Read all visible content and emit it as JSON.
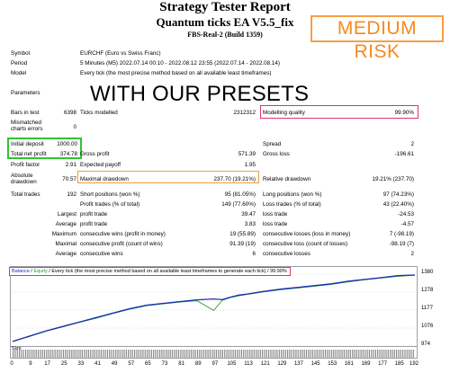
{
  "header": {
    "title": "Strategy Tester Report",
    "subtitle": "Quantum ticks EA V5.5_fix",
    "server": "FBS-Real-2 (Build 1359)",
    "risk_badge": "MEDIUM RISK",
    "overlay_text": "WITH OUR PRESETS"
  },
  "info": {
    "symbol_label": "Symbol",
    "symbol_value": "EURCHF (Euro vs Swiss Franc)",
    "period_label": "Period",
    "period_value": "5 Minutes (M5) 2022.07.14 00:10 - 2022.08.12 23:55 (2022.07.14 - 2022.08.14)",
    "model_label": "Model",
    "model_value": "Every tick (the most precise method based on all available least timeframes)",
    "parameters_label": "Parameters"
  },
  "stats": {
    "bars_label": "Bars in test",
    "bars_value": "6398",
    "ticks_label": "Ticks modelled",
    "ticks_value": "2312312",
    "quality_label": "Modelling quality",
    "quality_value": "99.90%",
    "mismatched_label_1": "Mismatched",
    "mismatched_label_2": "charts errors",
    "mismatched_value": "0",
    "deposit_label": "Initial deposit",
    "deposit_value": "1000.00",
    "spread_label": "Spread",
    "spread_value": "2",
    "net_label": "Total net profit",
    "net_value": "374.78",
    "gross_profit_label": "Gross profit",
    "gross_profit_value": "571.39",
    "gross_loss_label": "Gross loss",
    "gross_loss_value": "-196.61",
    "pf_label": "Profit factor",
    "pf_value": "2.91",
    "payoff_label": "Expected payoff",
    "payoff_value": "1.95",
    "abs_dd_label_1": "Absolute",
    "abs_dd_label_2": "drawdown",
    "abs_dd_value": "70.57",
    "max_dd_label": "Maximal drawdown",
    "max_dd_value": "237.70 (19.21%)",
    "rel_dd_label": "Relative drawdown",
    "rel_dd_value": "19.21% (237.70)",
    "trades_label": "Total trades",
    "trades_value": "192",
    "short_label": "Short positions (won %)",
    "short_value": "95 (81.05%)",
    "long_label": "Long positions (won %)",
    "long_value": "97 (74.23%)",
    "pt_label": "Profit trades (% of total)",
    "pt_value": "149 (77.60%)",
    "lt_label": "Loss trades (% of total)",
    "lt_value": "43 (22.40%)",
    "largest_label": "Largest",
    "largest_pt_label": "profit trade",
    "largest_pt_value": "39.47",
    "largest_lt_label": "loss trade",
    "largest_lt_value": "-24.53",
    "average_label": "Average",
    "avg_pt_label": "profit trade",
    "avg_pt_value": "3.83",
    "avg_lt_label": "loss trade",
    "avg_lt_value": "-4.57",
    "maximum_label": "Maximum",
    "max_cw_label": "consecutive wins (profit in money)",
    "max_cw_value": "19 (55.89)",
    "max_cl_label": "consecutive losses (loss in money)",
    "max_cl_value": "7 (-98.19)",
    "maximal_label": "Maximal",
    "maxl_cp_label": "consecutive profit (count of wins)",
    "maxl_cp_value": "91.39 (19)",
    "maxl_cl_label": "consecutive loss (count of losses)",
    "maxl_cl_value": "-98.19 (7)",
    "avg2_label": "Average",
    "avg_cw_label": "consecutive wins",
    "avg_cw_value": "6",
    "avg_cl_label": "consecutive losses",
    "avg_cl_value": "2"
  },
  "chart": {
    "legend_balance": "Balance",
    "legend_sep": " / ",
    "legend_equity": "Equity",
    "legend_rest": " / Every tick (the most precise method based on all available least timeframes to generate each tick) / 99.90%",
    "size_label": "Size",
    "yticks": [
      "1380",
      "1278",
      "1177",
      "1076",
      "974"
    ],
    "xticks": [
      "0",
      "9",
      "17",
      "25",
      "33",
      "41",
      "49",
      "57",
      "65",
      "73",
      "81",
      "89",
      "97",
      "105",
      "113",
      "121",
      "129",
      "137",
      "145",
      "153",
      "161",
      "169",
      "177",
      "185",
      "192"
    ]
  },
  "chart_data": {
    "type": "line",
    "ylim": [
      974,
      1380
    ],
    "x": [
      0,
      8,
      16,
      24,
      32,
      40,
      48,
      56,
      64,
      72,
      80,
      88,
      96,
      100,
      104,
      108,
      112,
      116,
      120,
      128,
      136,
      144,
      152,
      160,
      168,
      176,
      184,
      192
    ],
    "series": [
      {
        "name": "Balance",
        "values": [
          1000,
          1030,
          1060,
          1085,
          1110,
          1135,
          1160,
          1185,
          1205,
          1215,
          1225,
          1235,
          1240,
          1236,
          1250,
          1262,
          1268,
          1275,
          1283,
          1295,
          1305,
          1315,
          1325,
          1340,
          1350,
          1360,
          1372,
          1375
        ]
      },
      {
        "name": "Equity",
        "values": [
          1000,
          1028,
          1058,
          1082,
          1108,
          1132,
          1158,
          1182,
          1202,
          1212,
          1222,
          1230,
          1175,
          1232,
          1248,
          1258,
          1266,
          1273,
          1280,
          1292,
          1302,
          1312,
          1322,
          1336,
          1348,
          1358,
          1368,
          1374
        ]
      }
    ]
  },
  "colors": {
    "balance": "#1c2fb5",
    "equity": "#2a9a2a",
    "highlight_pink": "#e0307a",
    "highlight_green": "#32c232",
    "highlight_orange": "#f29a3c"
  }
}
